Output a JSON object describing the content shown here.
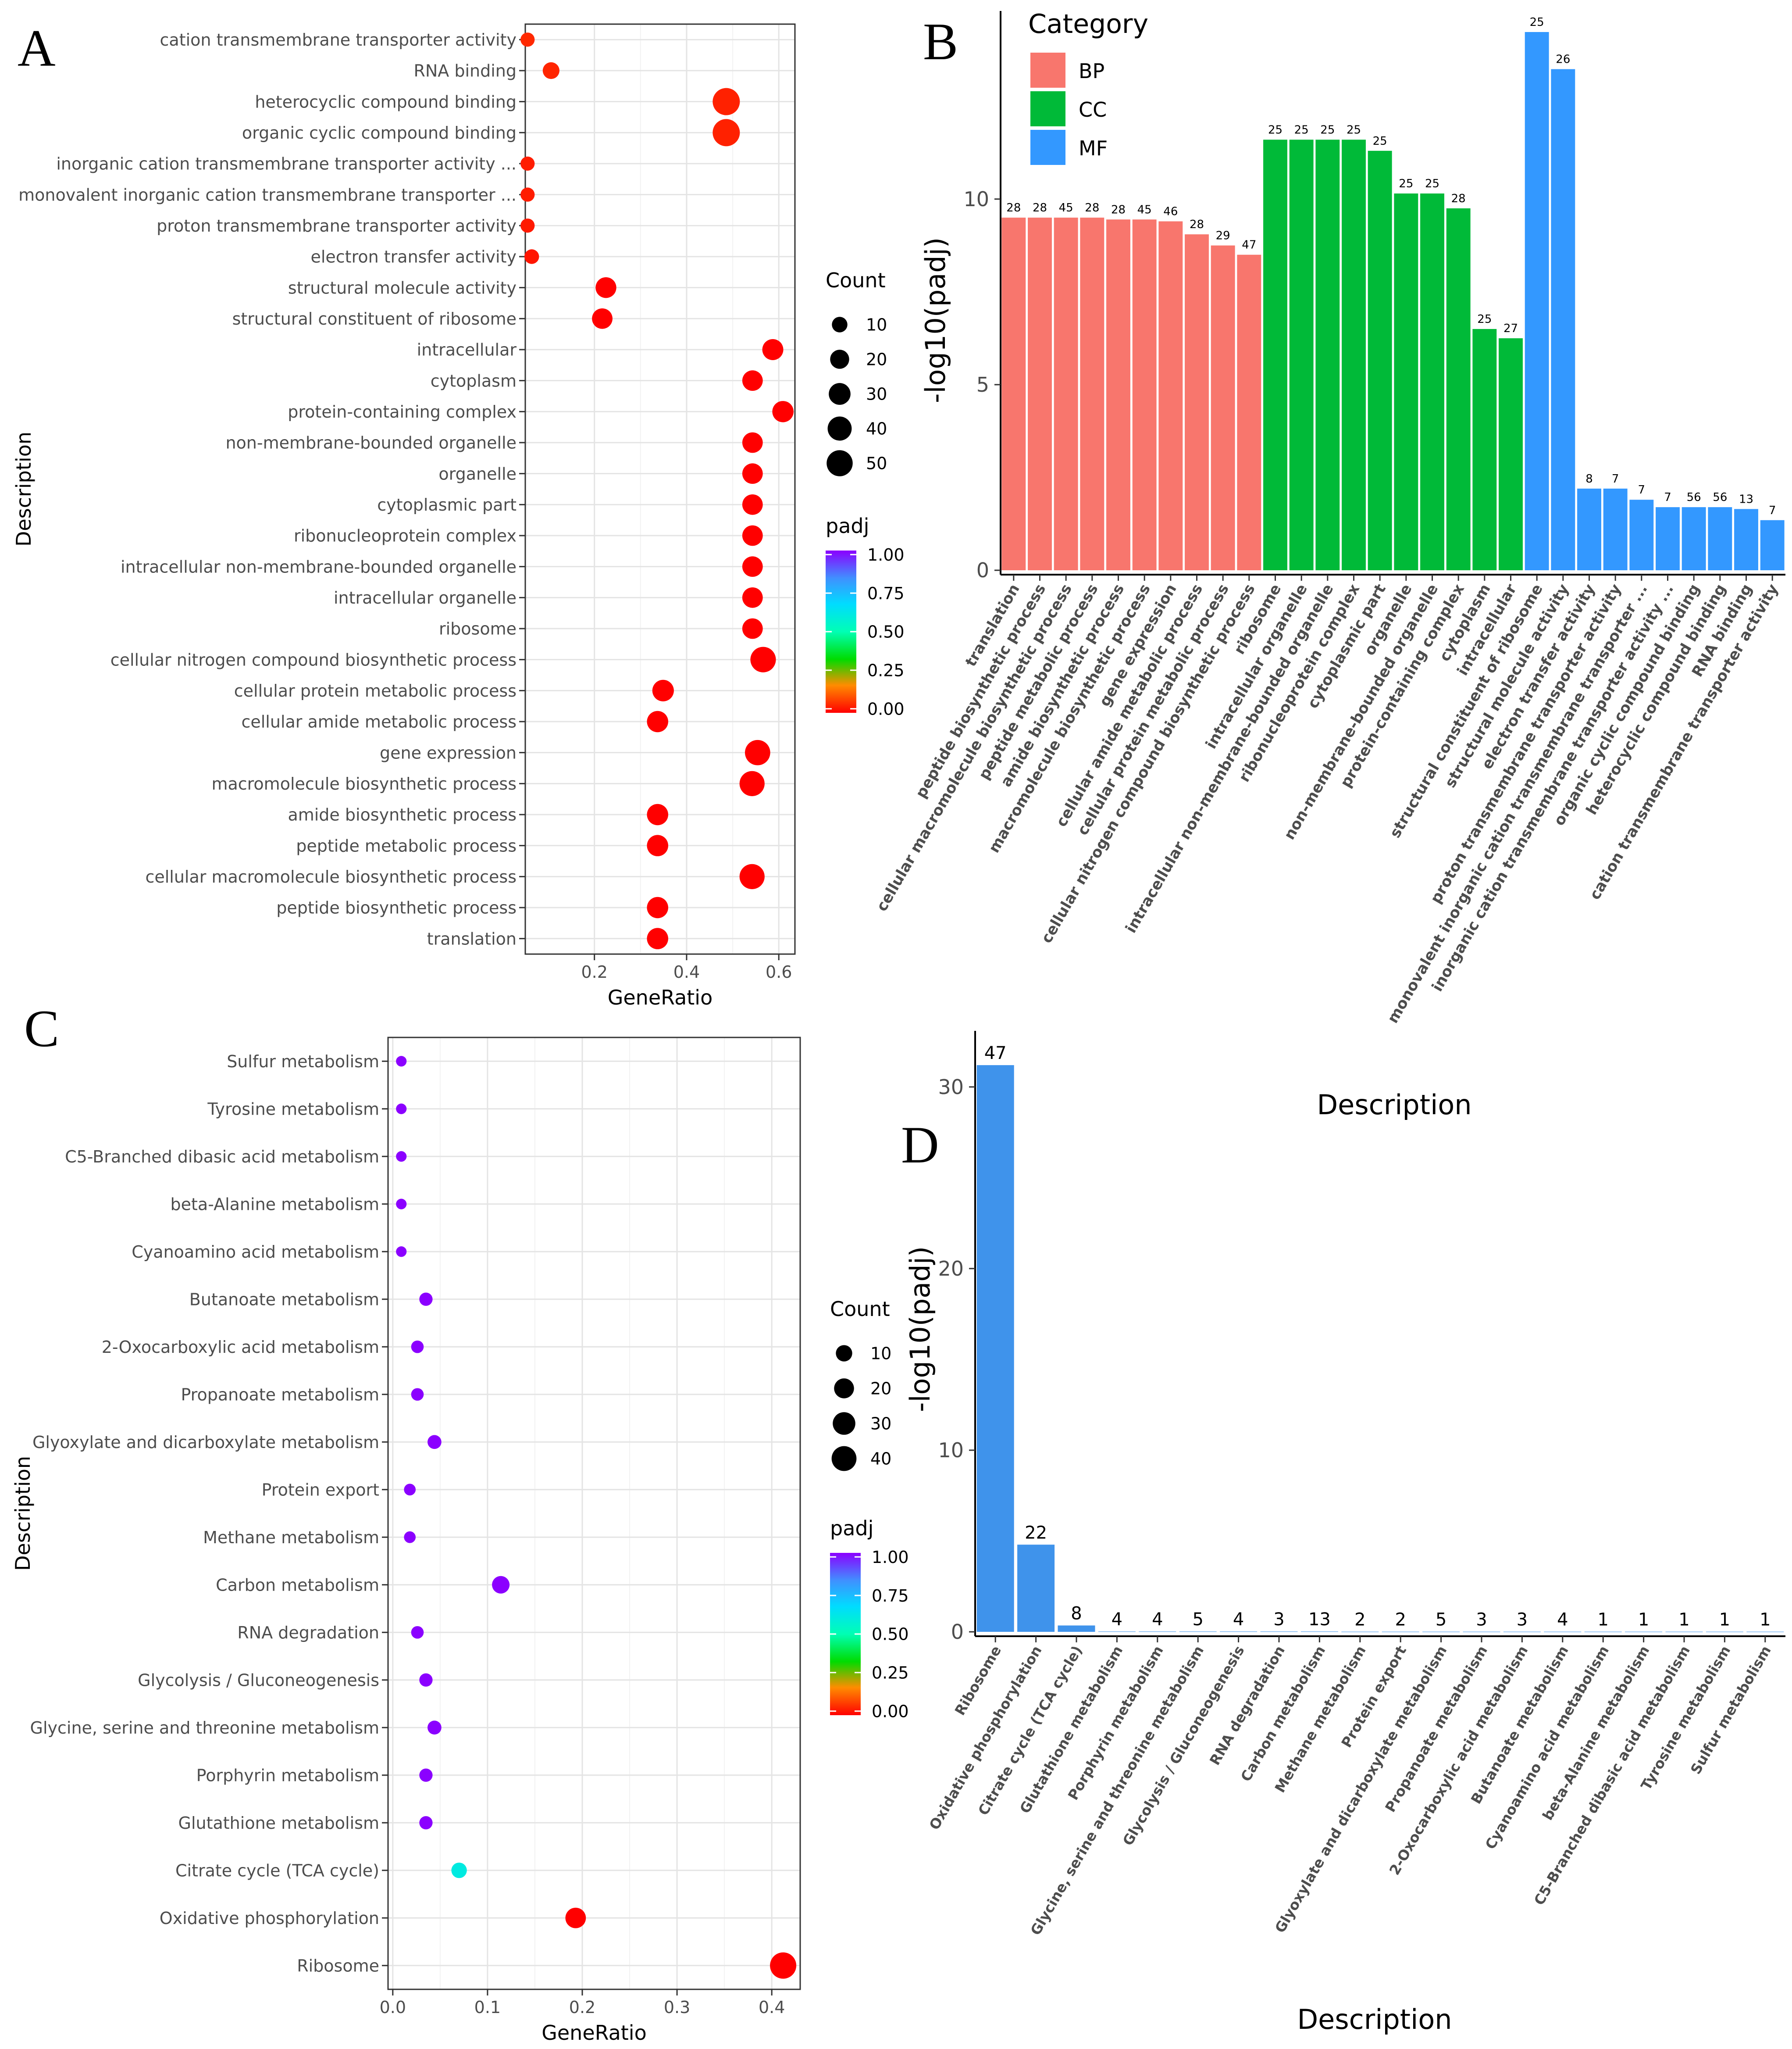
{
  "chart_data": [
    {
      "panel": "A",
      "type": "scatter",
      "subtype": "dotplot",
      "xlabel": "GeneRatio",
      "ylabel": "Description",
      "xlim": [
        0.05,
        0.635
      ],
      "xticks": [
        0.2,
        0.4,
        0.6
      ],
      "xtick_labels": [
        "0.2",
        "0.4",
        "0.6"
      ],
      "grid": true,
      "legend_position": "right",
      "size_legend": {
        "title": "Count",
        "values": [
          10,
          20,
          30,
          40,
          50
        ],
        "labels": [
          "10",
          "20",
          "30",
          "40",
          "50"
        ]
      },
      "color_legend": {
        "title": "padj",
        "ticks": [
          1.0,
          0.75,
          0.5,
          0.25,
          0.0
        ],
        "labels": [
          "1.00",
          "0.75",
          "0.50",
          "0.25",
          "0.00"
        ]
      },
      "points": [
        {
          "label": "cation transmembrane transporter activity",
          "generatio": 0.055,
          "count": 7,
          "padj": 0.05
        },
        {
          "label": "RNA binding",
          "generatio": 0.106,
          "count": 13,
          "padj": 0.045
        },
        {
          "label": "heterocyclic compound binding",
          "generatio": 0.486,
          "count": 56,
          "padj": 0.04
        },
        {
          "label": "organic cyclic compound binding",
          "generatio": 0.486,
          "count": 56,
          "padj": 0.04
        },
        {
          "label": "inorganic cation transmembrane transporter activity ...",
          "generatio": 0.055,
          "count": 7,
          "padj": 0.035
        },
        {
          "label": "monovalent inorganic cation transmembrane transporter ...",
          "generatio": 0.055,
          "count": 7,
          "padj": 0.035
        },
        {
          "label": "proton transmembrane transporter activity",
          "generatio": 0.055,
          "count": 7,
          "padj": 0.03
        },
        {
          "label": "electron transfer activity",
          "generatio": 0.064,
          "count": 8,
          "padj": 0.025
        },
        {
          "label": "structural molecule activity",
          "generatio": 0.225,
          "count": 26,
          "padj": 0.0
        },
        {
          "label": "structural constituent of ribosome",
          "generatio": 0.217,
          "count": 25,
          "padj": 0.0
        },
        {
          "label": "intracellular",
          "generatio": 0.587,
          "count": 27,
          "padj": 0.0
        },
        {
          "label": "cytoplasm",
          "generatio": 0.543,
          "count": 25,
          "padj": 0.0
        },
        {
          "label": "protein-containing complex",
          "generatio": 0.609,
          "count": 28,
          "padj": 0.0
        },
        {
          "label": "non-membrane-bounded organelle",
          "generatio": 0.543,
          "count": 25,
          "padj": 0.0
        },
        {
          "label": "organelle",
          "generatio": 0.543,
          "count": 25,
          "padj": 0.0
        },
        {
          "label": "cytoplasmic part",
          "generatio": 0.543,
          "count": 25,
          "padj": 0.0
        },
        {
          "label": "ribonucleoprotein complex",
          "generatio": 0.543,
          "count": 25,
          "padj": 0.0
        },
        {
          "label": "intracellular non-membrane-bounded organelle",
          "generatio": 0.543,
          "count": 25,
          "padj": 0.0
        },
        {
          "label": "intracellular organelle",
          "generatio": 0.543,
          "count": 25,
          "padj": 0.0
        },
        {
          "label": "ribosome",
          "generatio": 0.543,
          "count": 25,
          "padj": 0.0
        },
        {
          "label": "cellular nitrogen compound biosynthetic process",
          "generatio": 0.566,
          "count": 47,
          "padj": 0.0
        },
        {
          "label": "cellular protein metabolic process",
          "generatio": 0.349,
          "count": 29,
          "padj": 0.0
        },
        {
          "label": "cellular amide metabolic process",
          "generatio": 0.337,
          "count": 28,
          "padj": 0.0
        },
        {
          "label": "gene expression",
          "generatio": 0.554,
          "count": 46,
          "padj": 0.0
        },
        {
          "label": "macromolecule biosynthetic process",
          "generatio": 0.542,
          "count": 45,
          "padj": 0.0
        },
        {
          "label": "amide biosynthetic process",
          "generatio": 0.337,
          "count": 28,
          "padj": 0.0
        },
        {
          "label": "peptide metabolic process",
          "generatio": 0.337,
          "count": 28,
          "padj": 0.0
        },
        {
          "label": "cellular macromolecule biosynthetic process",
          "generatio": 0.542,
          "count": 45,
          "padj": 0.0
        },
        {
          "label": "peptide biosynthetic process",
          "generatio": 0.337,
          "count": 28,
          "padj": 0.0
        },
        {
          "label": "translation",
          "generatio": 0.337,
          "count": 28,
          "padj": 0.0
        }
      ]
    },
    {
      "panel": "B",
      "type": "bar",
      "xlabel": "Description",
      "ylabel": "-log10(padj)",
      "ylim": [
        0,
        14.5
      ],
      "yticks": [
        0,
        5,
        10
      ],
      "ytick_labels": [
        "0",
        "5",
        "10"
      ],
      "grid": false,
      "legend_position": "top-left",
      "legend": {
        "title": "Category",
        "entries": [
          "BP",
          "CC",
          "MF"
        ],
        "colors": [
          "#F8766D",
          "#00BA38",
          "#3398FF"
        ]
      },
      "categories": [
        "translation",
        "peptide biosynthetic process",
        "cellular macromolecule biosynthetic process",
        "peptide metabolic process",
        "amide biosynthetic process",
        "macromolecule biosynthetic process",
        "gene expression",
        "cellular amide metabolic process",
        "cellular protein metabolic process",
        "cellular nitrogen compound biosynthetic process",
        "ribosome",
        "intracellular organelle",
        "intracellular non-membrane-bounded organelle",
        "ribonucleoprotein complex",
        "cytoplasmic part",
        "organelle",
        "non-membrane-bounded organelle",
        "protein-containing complex",
        "cytoplasm",
        "intracellular",
        "structural constituent of ribosome",
        "structural molecule activity",
        "electron transfer activity",
        "proton transmembrane transporter activity",
        "monovalent inorganic cation transmembrane transporter ...",
        "inorganic cation transmembrane transporter activity ...",
        "organic cyclic compound binding",
        "heterocyclic compound binding",
        "RNA binding",
        "cation transmembrane transporter activity"
      ],
      "group": [
        "BP",
        "BP",
        "BP",
        "BP",
        "BP",
        "BP",
        "BP",
        "BP",
        "BP",
        "BP",
        "CC",
        "CC",
        "CC",
        "CC",
        "CC",
        "CC",
        "CC",
        "CC",
        "CC",
        "CC",
        "MF",
        "MF",
        "MF",
        "MF",
        "MF",
        "MF",
        "MF",
        "MF",
        "MF",
        "MF"
      ],
      "values": [
        9.5,
        9.5,
        9.5,
        9.5,
        9.45,
        9.45,
        9.4,
        9.05,
        8.75,
        8.5,
        11.6,
        11.6,
        11.6,
        11.6,
        11.3,
        10.15,
        10.15,
        9.75,
        6.5,
        6.25,
        14.5,
        13.5,
        2.2,
        2.2,
        1.9,
        1.7,
        1.7,
        1.7,
        1.65,
        1.35
      ],
      "bar_labels": [
        "28",
        "28",
        "45",
        "28",
        "28",
        "45",
        "46",
        "28",
        "29",
        "47",
        "25",
        "25",
        "25",
        "25",
        "25",
        "25",
        "25",
        "28",
        "25",
        "27",
        "25",
        "26",
        "8",
        "7",
        "7",
        "7",
        "56",
        "56",
        "13",
        "7"
      ]
    },
    {
      "panel": "C",
      "type": "scatter",
      "subtype": "dotplot",
      "xlabel": "GeneRatio",
      "ylabel": "Description",
      "xlim": [
        -0.005,
        0.43
      ],
      "xticks": [
        0.0,
        0.1,
        0.2,
        0.3,
        0.4
      ],
      "xtick_labels": [
        "0.0",
        "0.1",
        "0.2",
        "0.3",
        "0.4"
      ],
      "grid": true,
      "legend_position": "right",
      "size_legend": {
        "title": "Count",
        "values": [
          10,
          20,
          30,
          40
        ],
        "labels": [
          "10",
          "20",
          "30",
          "40"
        ]
      },
      "color_legend": {
        "title": "padj",
        "ticks": [
          1.0,
          0.75,
          0.5,
          0.25,
          0.0
        ],
        "labels": [
          "1.00",
          "0.75",
          "0.50",
          "0.25",
          "0.00"
        ]
      },
      "points": [
        {
          "label": "Sulfur metabolism",
          "generatio": 0.009,
          "count": 1,
          "padj": 1.0
        },
        {
          "label": "Tyrosine metabolism",
          "generatio": 0.009,
          "count": 1,
          "padj": 1.0
        },
        {
          "label": "C5-Branched dibasic acid metabolism",
          "generatio": 0.009,
          "count": 1,
          "padj": 1.0
        },
        {
          "label": "beta-Alanine metabolism",
          "generatio": 0.009,
          "count": 1,
          "padj": 1.0
        },
        {
          "label": "Cyanoamino acid metabolism",
          "generatio": 0.009,
          "count": 1,
          "padj": 1.0
        },
        {
          "label": "Butanoate metabolism",
          "generatio": 0.035,
          "count": 4,
          "padj": 1.0
        },
        {
          "label": "2-Oxocarboxylic acid metabolism",
          "generatio": 0.026,
          "count": 3,
          "padj": 1.0
        },
        {
          "label": "Propanoate metabolism",
          "generatio": 0.026,
          "count": 3,
          "padj": 1.0
        },
        {
          "label": "Glyoxylate and dicarboxylate metabolism",
          "generatio": 0.044,
          "count": 5,
          "padj": 1.0
        },
        {
          "label": "Protein export",
          "generatio": 0.018,
          "count": 2,
          "padj": 1.0
        },
        {
          "label": "Methane metabolism",
          "generatio": 0.018,
          "count": 2,
          "padj": 1.0
        },
        {
          "label": "Carbon metabolism",
          "generatio": 0.114,
          "count": 13,
          "padj": 1.0
        },
        {
          "label": "RNA degradation",
          "generatio": 0.026,
          "count": 3,
          "padj": 1.0
        },
        {
          "label": "Glycolysis / Gluconeogenesis",
          "generatio": 0.035,
          "count": 4,
          "padj": 1.0
        },
        {
          "label": "Glycine, serine and threonine metabolism",
          "generatio": 0.044,
          "count": 5,
          "padj": 1.0
        },
        {
          "label": "Porphyrin metabolism",
          "generatio": 0.035,
          "count": 4,
          "padj": 1.0
        },
        {
          "label": "Glutathione metabolism",
          "generatio": 0.035,
          "count": 4,
          "padj": 1.0
        },
        {
          "label": "Citrate cycle (TCA cycle)",
          "generatio": 0.07,
          "count": 8,
          "padj": 0.6
        },
        {
          "label": "Oxidative phosphorylation",
          "generatio": 0.193,
          "count": 22,
          "padj": 0.0
        },
        {
          "label": "Ribosome",
          "generatio": 0.412,
          "count": 47,
          "padj": 0.0
        }
      ]
    },
    {
      "panel": "D",
      "type": "bar",
      "xlabel": "Description",
      "ylabel": "-log10(padj)",
      "ylim": [
        0,
        32
      ],
      "yticks": [
        0,
        10,
        20,
        30
      ],
      "ytick_labels": [
        "0",
        "10",
        "20",
        "30"
      ],
      "grid": false,
      "color": "#3F93EB",
      "categories": [
        "Ribosome",
        "Oxidative phosphorylation",
        "Citrate cycle (TCA cycle)",
        "Glutathione metabolism",
        "Porphyrin metabolism",
        "Glycine, serine and threonine metabolism",
        "Glycolysis / Gluconeogenesis",
        "RNA degradation",
        "Carbon metabolism",
        "Methane metabolism",
        "Protein export",
        "Glyoxylate and dicarboxylate metabolism",
        "Propanoate metabolism",
        "2-Oxocarboxylic acid metabolism",
        "Butanoate metabolism",
        "Cyanoamino acid metabolism",
        "beta-Alanine metabolism",
        "C5-Branched dibasic acid metabolism",
        "Tyrosine metabolism",
        "Sulfur metabolism"
      ],
      "values": [
        31.2,
        4.8,
        0.35,
        0.02,
        0.02,
        0.02,
        0.02,
        0.02,
        0.02,
        0.01,
        0.01,
        0.01,
        0.01,
        0.01,
        0.01,
        0.01,
        0.01,
        0.01,
        0.01,
        0.01
      ],
      "bar_labels": [
        "47",
        "22",
        "8",
        "4",
        "4",
        "5",
        "4",
        "3",
        "13",
        "2",
        "2",
        "5",
        "3",
        "3",
        "4",
        "1",
        "1",
        "1",
        "1",
        "1"
      ]
    }
  ]
}
